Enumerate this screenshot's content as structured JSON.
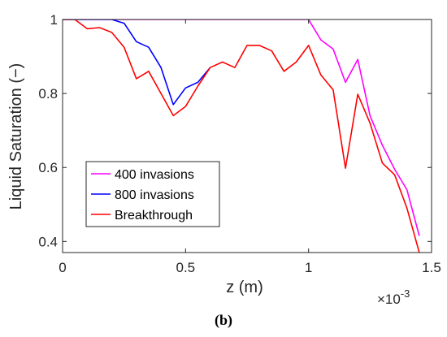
{
  "chart_data": {
    "type": "line",
    "xlabel": "z (m)",
    "ylabel": "Liquid Saturation (−)",
    "x_multiplier": "×10",
    "x_multiplier_exp": "-3",
    "caption": "(b)",
    "xlim": [
      0,
      1.5
    ],
    "ylim": [
      0.37,
      1.0
    ],
    "xticks": [
      0,
      0.5,
      1,
      1.5
    ],
    "xtick_labels": [
      "0",
      "0.5",
      "1",
      "1.5"
    ],
    "yticks": [
      0.4,
      0.6,
      0.8,
      1.0
    ],
    "ytick_labels": [
      "0.4",
      "0.6",
      "0.8",
      "1"
    ],
    "grid": false,
    "legend_position": "lower-left",
    "series": [
      {
        "name": "400 invasions",
        "color": "#ff00ff",
        "x": [
          0,
          0.05,
          0.1,
          0.15,
          0.2,
          0.25,
          0.3,
          0.35,
          0.4,
          0.45,
          0.5,
          0.55,
          0.6,
          0.65,
          0.7,
          0.75,
          0.8,
          0.85,
          0.9,
          0.95,
          1.0,
          1.05,
          1.1,
          1.15,
          1.2,
          1.25,
          1.3,
          1.35,
          1.4,
          1.45
        ],
        "y": [
          1.0,
          1.0,
          1.0,
          1.0,
          1.0,
          1.0,
          1.0,
          1.0,
          1.0,
          1.0,
          1.0,
          1.0,
          1.0,
          1.0,
          1.0,
          1.0,
          1.0,
          1.0,
          1.0,
          1.0,
          1.0,
          0.945,
          0.92,
          0.83,
          0.892,
          0.74,
          0.66,
          0.595,
          0.54,
          0.415
        ]
      },
      {
        "name": "800 invasions",
        "color": "#0000ff",
        "x": [
          0,
          0.05,
          0.1,
          0.15,
          0.2,
          0.25,
          0.3,
          0.35,
          0.4,
          0.45,
          0.5,
          0.55,
          0.6
        ],
        "y": [
          1.0,
          1.0,
          1.0,
          1.0,
          1.0,
          0.99,
          0.94,
          0.925,
          0.87,
          0.77,
          0.815,
          0.83,
          0.87
        ]
      },
      {
        "name": "Breakthrough",
        "color": "#ff0000",
        "x": [
          0,
          0.05,
          0.1,
          0.15,
          0.2,
          0.25,
          0.3,
          0.35,
          0.4,
          0.45,
          0.5,
          0.55,
          0.6,
          0.65,
          0.7,
          0.75,
          0.8,
          0.85,
          0.9,
          0.95,
          1.0,
          1.05,
          1.1,
          1.15,
          1.2,
          1.25,
          1.3,
          1.35,
          1.4,
          1.45
        ],
        "y": [
          1.0,
          1.0,
          0.975,
          0.978,
          0.965,
          0.925,
          0.84,
          0.86,
          0.8,
          0.74,
          0.765,
          0.82,
          0.87,
          0.885,
          0.87,
          0.93,
          0.93,
          0.915,
          0.86,
          0.885,
          0.93,
          0.85,
          0.81,
          0.598,
          0.798,
          0.72,
          0.612,
          0.58,
          0.49,
          0.37
        ]
      }
    ]
  }
}
